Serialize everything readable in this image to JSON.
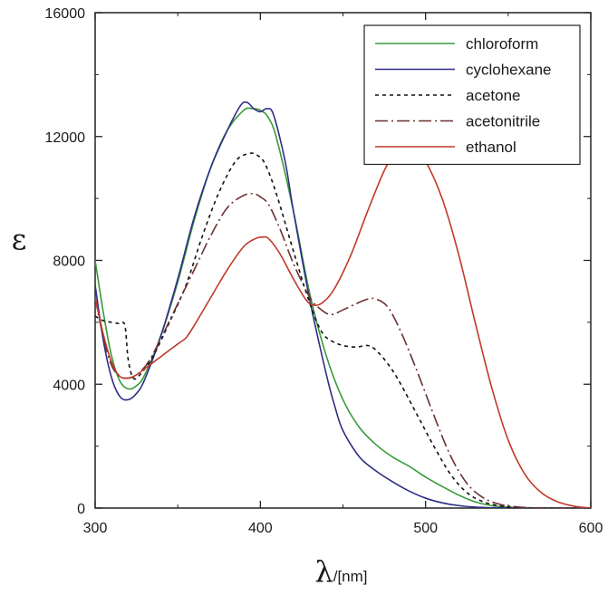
{
  "chart_data": {
    "type": "line",
    "xlabel": "λ",
    "xlabel_unit": "/[nm]",
    "ylabel": "ε",
    "xlim": [
      300,
      600
    ],
    "ylim": [
      0,
      16000
    ],
    "x_ticks": [
      300,
      400,
      500,
      600
    ],
    "y_ticks": [
      0,
      4000,
      8000,
      12000,
      16000
    ],
    "grid": false,
    "legend_position": "top-right",
    "series": [
      {
        "name": "chloroform",
        "color": "#3a9a3a",
        "dash": "solid",
        "points": [
          [
            300,
            8000
          ],
          [
            305,
            6300
          ],
          [
            310,
            4900
          ],
          [
            315,
            4100
          ],
          [
            320,
            3850
          ],
          [
            325,
            3950
          ],
          [
            330,
            4300
          ],
          [
            340,
            5600
          ],
          [
            350,
            7300
          ],
          [
            360,
            9300
          ],
          [
            370,
            11000
          ],
          [
            380,
            12200
          ],
          [
            390,
            12850
          ],
          [
            395,
            12900
          ],
          [
            400,
            12850
          ],
          [
            405,
            12600
          ],
          [
            410,
            11900
          ],
          [
            420,
            9600
          ],
          [
            430,
            6900
          ],
          [
            440,
            4900
          ],
          [
            450,
            3500
          ],
          [
            460,
            2600
          ],
          [
            470,
            2050
          ],
          [
            480,
            1650
          ],
          [
            490,
            1350
          ],
          [
            500,
            1000
          ],
          [
            510,
            700
          ],
          [
            520,
            420
          ],
          [
            530,
            200
          ],
          [
            540,
            80
          ],
          [
            550,
            30
          ],
          [
            560,
            10
          ],
          [
            580,
            0
          ],
          [
            600,
            0
          ]
        ]
      },
      {
        "name": "cyclohexane",
        "color": "#2e2e86",
        "dash": "solid",
        "points": [
          [
            300,
            7200
          ],
          [
            305,
            5400
          ],
          [
            310,
            4200
          ],
          [
            315,
            3600
          ],
          [
            320,
            3500
          ],
          [
            325,
            3700
          ],
          [
            330,
            4150
          ],
          [
            340,
            5600
          ],
          [
            350,
            7400
          ],
          [
            360,
            9400
          ],
          [
            370,
            11000
          ],
          [
            380,
            12200
          ],
          [
            388,
            13000
          ],
          [
            392,
            13100
          ],
          [
            396,
            12900
          ],
          [
            400,
            12800
          ],
          [
            404,
            12900
          ],
          [
            408,
            12700
          ],
          [
            415,
            11200
          ],
          [
            420,
            9600
          ],
          [
            430,
            6700
          ],
          [
            440,
            4300
          ],
          [
            445,
            3300
          ],
          [
            450,
            2500
          ],
          [
            460,
            1650
          ],
          [
            470,
            1200
          ],
          [
            480,
            850
          ],
          [
            490,
            550
          ],
          [
            500,
            320
          ],
          [
            510,
            170
          ],
          [
            520,
            80
          ],
          [
            530,
            30
          ],
          [
            540,
            10
          ],
          [
            560,
            0
          ],
          [
            600,
            0
          ]
        ]
      },
      {
        "name": "acetone",
        "color": "#111111",
        "dash": "4,4",
        "points": [
          [
            300,
            6200
          ],
          [
            305,
            6050
          ],
          [
            310,
            6000
          ],
          [
            315,
            5950
          ],
          [
            318,
            5900
          ],
          [
            320,
            4800
          ],
          [
            323,
            4200
          ],
          [
            327,
            4300
          ],
          [
            335,
            4900
          ],
          [
            345,
            6000
          ],
          [
            355,
            7200
          ],
          [
            365,
            8800
          ],
          [
            375,
            10200
          ],
          [
            385,
            11200
          ],
          [
            393,
            11450
          ],
          [
            398,
            11400
          ],
          [
            403,
            11100
          ],
          [
            410,
            10100
          ],
          [
            420,
            8300
          ],
          [
            430,
            6600
          ],
          [
            437,
            5700
          ],
          [
            443,
            5400
          ],
          [
            450,
            5250
          ],
          [
            458,
            5200
          ],
          [
            465,
            5250
          ],
          [
            470,
            5100
          ],
          [
            478,
            4600
          ],
          [
            485,
            4000
          ],
          [
            495,
            3000
          ],
          [
            505,
            2000
          ],
          [
            515,
            1100
          ],
          [
            525,
            500
          ],
          [
            535,
            200
          ],
          [
            545,
            70
          ],
          [
            555,
            20
          ],
          [
            570,
            0
          ],
          [
            600,
            0
          ]
        ]
      },
      {
        "name": "acetonitrile",
        "color": "#6b2f2f",
        "dash": "14,4,2,4",
        "points": [
          [
            300,
            6800
          ],
          [
            305,
            5500
          ],
          [
            310,
            4600
          ],
          [
            315,
            4250
          ],
          [
            320,
            4200
          ],
          [
            325,
            4300
          ],
          [
            332,
            4700
          ],
          [
            340,
            5500
          ],
          [
            350,
            6600
          ],
          [
            360,
            7700
          ],
          [
            370,
            8800
          ],
          [
            380,
            9700
          ],
          [
            390,
            10100
          ],
          [
            396,
            10150
          ],
          [
            400,
            10050
          ],
          [
            405,
            9800
          ],
          [
            412,
            9000
          ],
          [
            420,
            7900
          ],
          [
            430,
            6800
          ],
          [
            437,
            6400
          ],
          [
            443,
            6250
          ],
          [
            450,
            6400
          ],
          [
            458,
            6600
          ],
          [
            465,
            6750
          ],
          [
            470,
            6750
          ],
          [
            477,
            6500
          ],
          [
            485,
            5700
          ],
          [
            495,
            4400
          ],
          [
            505,
            3000
          ],
          [
            515,
            1700
          ],
          [
            525,
            800
          ],
          [
            535,
            330
          ],
          [
            545,
            120
          ],
          [
            555,
            40
          ],
          [
            570,
            0
          ],
          [
            600,
            0
          ]
        ]
      },
      {
        "name": "ethanol",
        "color": "#c0392b",
        "dash": "solid",
        "points": [
          [
            300,
            6800
          ],
          [
            305,
            5600
          ],
          [
            310,
            4700
          ],
          [
            315,
            4250
          ],
          [
            320,
            4200
          ],
          [
            325,
            4300
          ],
          [
            330,
            4500
          ],
          [
            340,
            4900
          ],
          [
            350,
            5300
          ],
          [
            355,
            5500
          ],
          [
            360,
            5900
          ],
          [
            370,
            6800
          ],
          [
            380,
            7700
          ],
          [
            390,
            8450
          ],
          [
            397,
            8700
          ],
          [
            401,
            8750
          ],
          [
            405,
            8700
          ],
          [
            412,
            8200
          ],
          [
            420,
            7400
          ],
          [
            428,
            6700
          ],
          [
            433,
            6550
          ],
          [
            438,
            6650
          ],
          [
            445,
            7100
          ],
          [
            455,
            8200
          ],
          [
            465,
            9600
          ],
          [
            475,
            10900
          ],
          [
            482,
            11500
          ],
          [
            488,
            11650
          ],
          [
            493,
            11600
          ],
          [
            500,
            11200
          ],
          [
            510,
            10000
          ],
          [
            520,
            8200
          ],
          [
            530,
            6000
          ],
          [
            540,
            3900
          ],
          [
            550,
            2200
          ],
          [
            560,
            1100
          ],
          [
            570,
            500
          ],
          [
            580,
            200
          ],
          [
            590,
            60
          ],
          [
            600,
            0
          ]
        ]
      }
    ]
  }
}
